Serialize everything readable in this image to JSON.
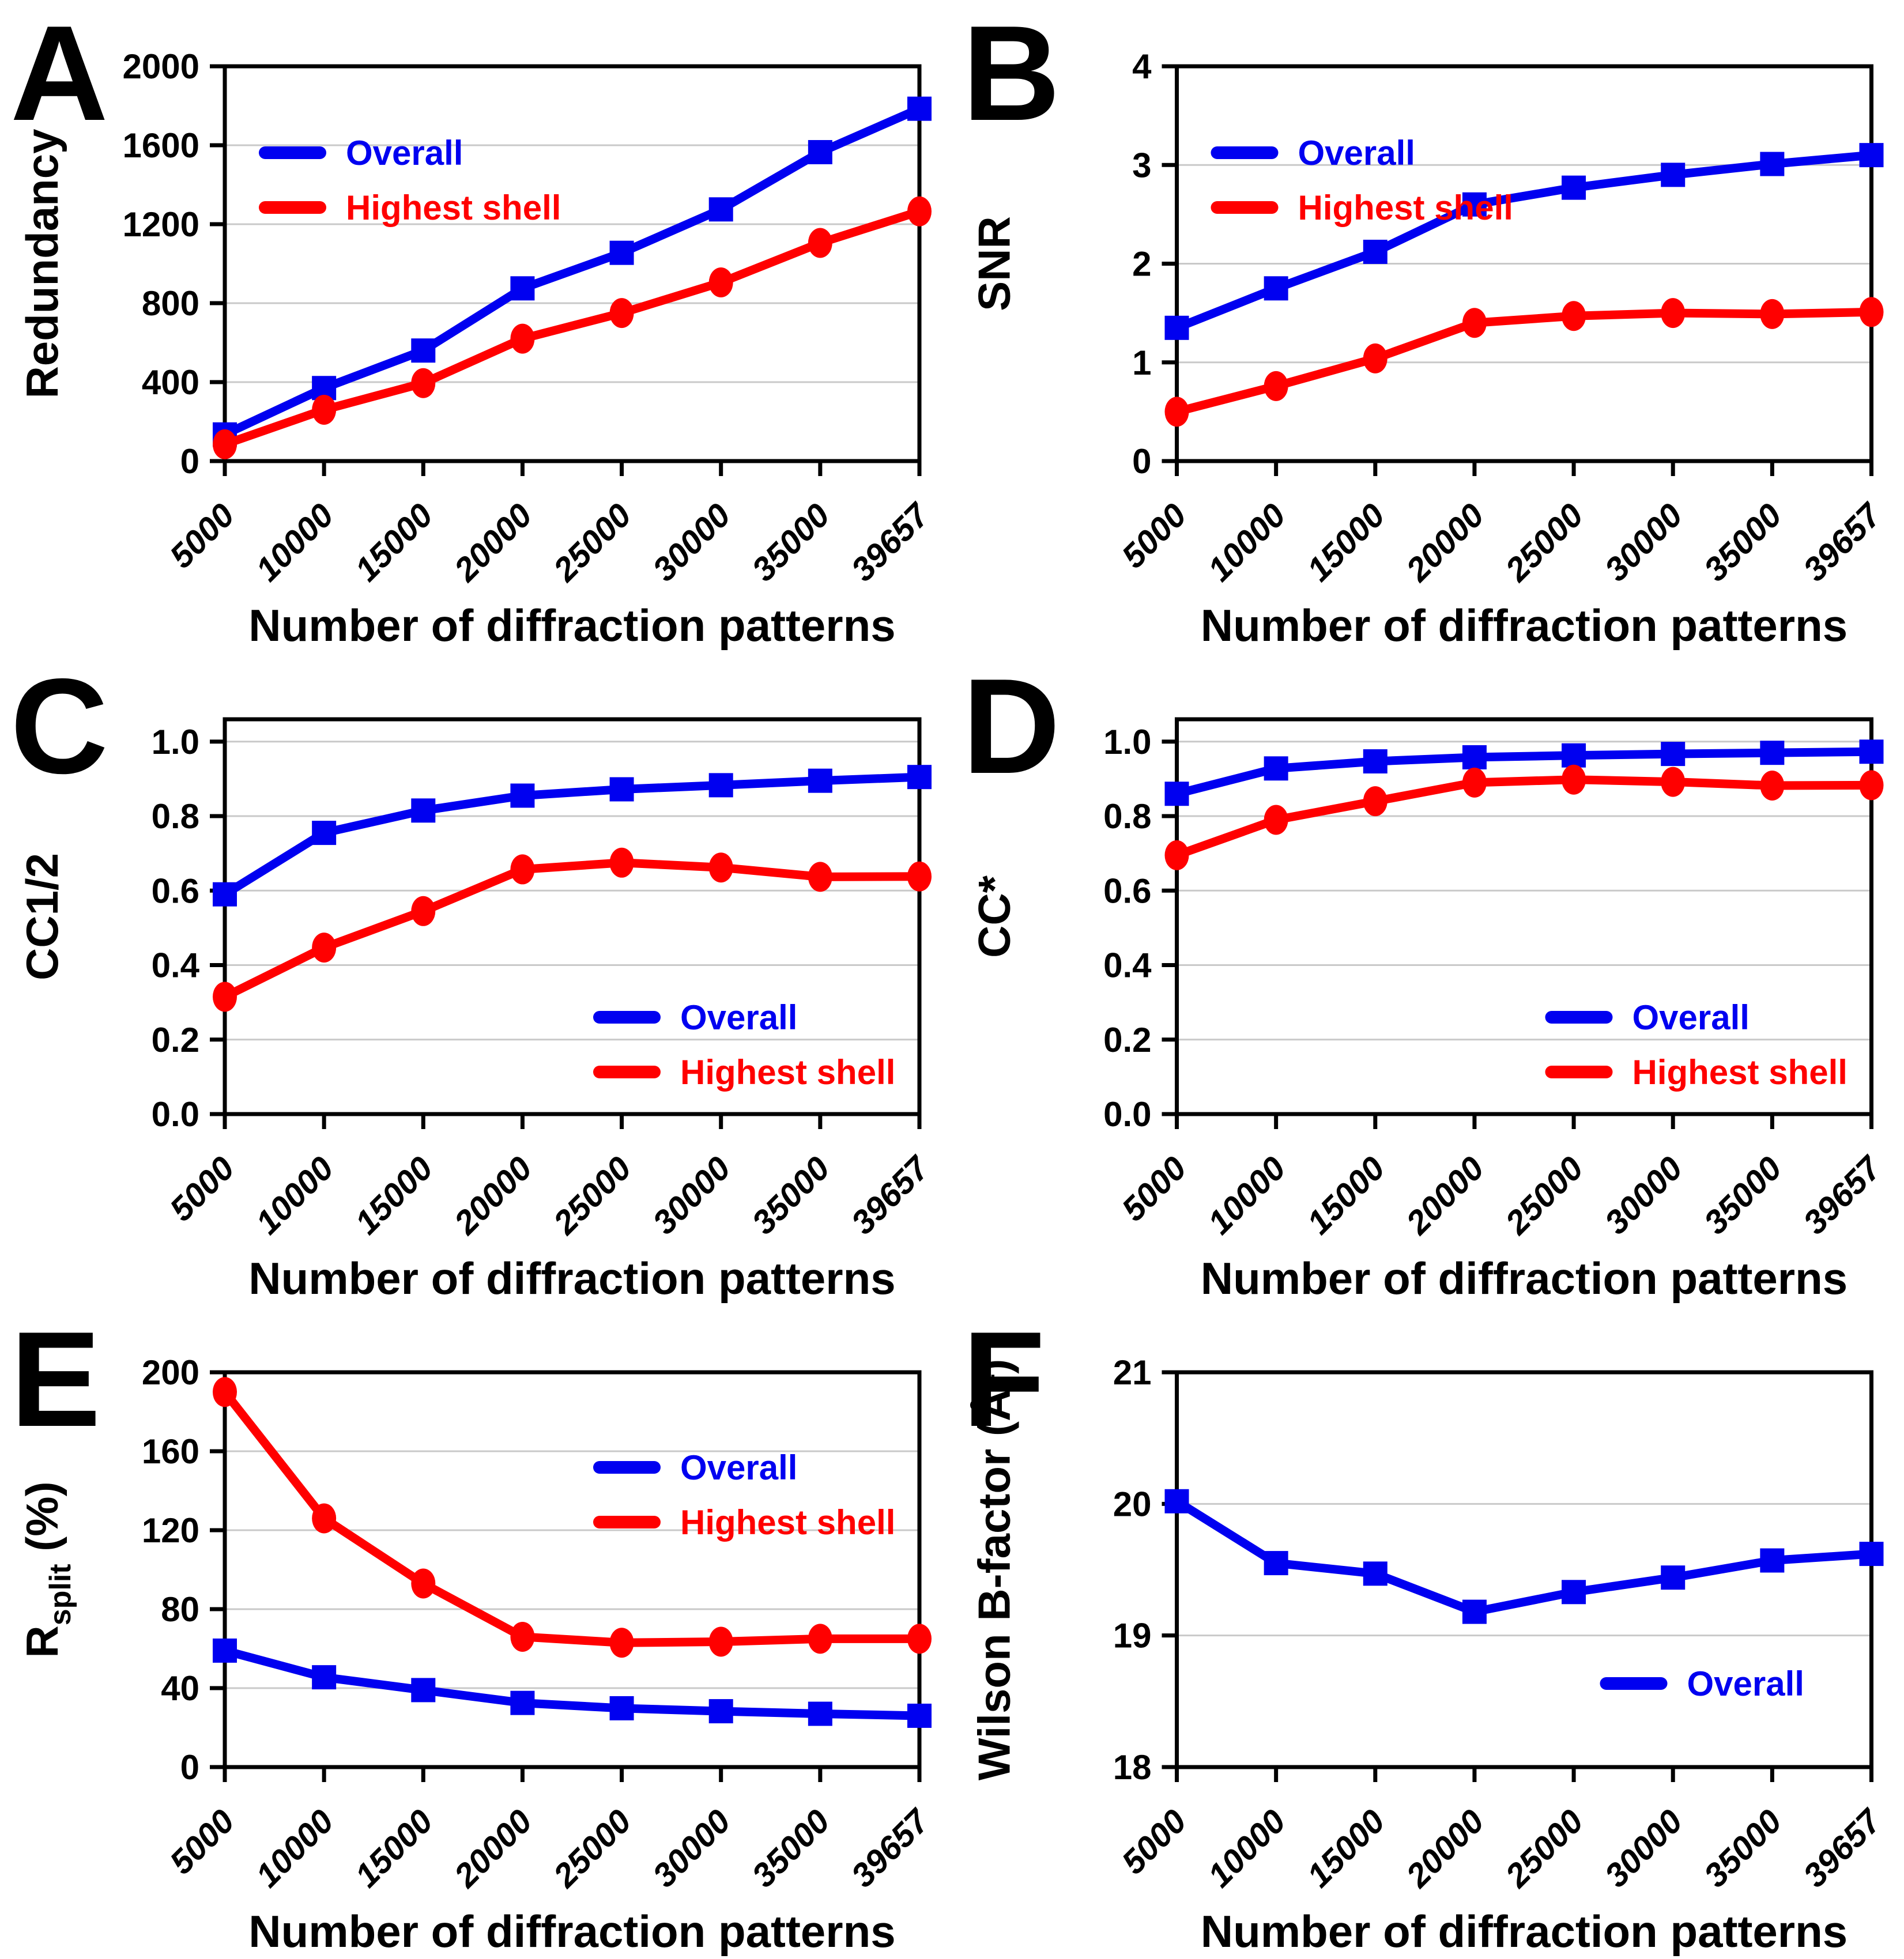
{
  "figure": {
    "background": "#FFFFFF",
    "xlabel": "Number of diffraction patterns",
    "categories": [
      "5000",
      "10000",
      "15000",
      "20000",
      "25000",
      "30000",
      "35000",
      "39657"
    ],
    "legend_labels": {
      "overall": "Overall",
      "highest_shell": "Highest shell"
    },
    "colors": {
      "overall": "#0000F0",
      "highest_shell": "#FF0000",
      "axis": "#000000",
      "grid": "#C9C9C9",
      "text": "#000000"
    }
  },
  "chart_data": [
    {
      "panel": "A",
      "type": "line",
      "ylabel_parts": [
        {
          "t": "Redundancy"
        }
      ],
      "ymin": 0,
      "ymax": 2000,
      "yticks": [
        "0",
        "400",
        "800",
        "1200",
        "1600",
        "2000"
      ],
      "x_categories": [
        "5000",
        "10000",
        "15000",
        "20000",
        "25000",
        "30000",
        "35000",
        "39657"
      ],
      "xlabel": "Number of diffraction patterns",
      "legend_position": "top-left",
      "series": [
        {
          "name": "Overall",
          "color": "#0000F0",
          "marker": "square",
          "values": [
            135,
            370,
            560,
            875,
            1055,
            1275,
            1565,
            1785
          ]
        },
        {
          "name": "Highest shell",
          "color": "#FF0000",
          "marker": "circle",
          "values": [
            85,
            260,
            395,
            620,
            750,
            905,
            1105,
            1265
          ]
        }
      ]
    },
    {
      "panel": "B",
      "type": "line",
      "ylabel_parts": [
        {
          "t": "SNR"
        }
      ],
      "ymin": 0,
      "ymax": 4,
      "yticks": [
        "0",
        "1",
        "2",
        "3",
        "4"
      ],
      "x_categories": [
        "5000",
        "10000",
        "15000",
        "20000",
        "25000",
        "30000",
        "35000",
        "39657"
      ],
      "xlabel": "Number of diffraction patterns",
      "legend_position": "top-left",
      "series": [
        {
          "name": "Overall",
          "color": "#0000F0",
          "marker": "square",
          "values": [
            1.35,
            1.75,
            2.12,
            2.6,
            2.77,
            2.9,
            3.01,
            3.1
          ]
        },
        {
          "name": "Highest shell",
          "color": "#FF0000",
          "marker": "circle",
          "values": [
            0.5,
            0.76,
            1.04,
            1.4,
            1.47,
            1.5,
            1.49,
            1.51
          ]
        }
      ]
    },
    {
      "panel": "C",
      "type": "line",
      "ylabel_parts": [
        {
          "t": "CC1/2"
        }
      ],
      "ymin": 0,
      "ymax": 1.06,
      "yticks": [
        "0.0",
        "0.2",
        "0.4",
        "0.6",
        "0.8",
        "1.0"
      ],
      "x_categories": [
        "5000",
        "10000",
        "15000",
        "20000",
        "25000",
        "30000",
        "35000",
        "39657"
      ],
      "xlabel": "Number of diffraction patterns",
      "legend_position": "bottom-right",
      "series": [
        {
          "name": "Overall",
          "color": "#0000F0",
          "marker": "square",
          "values": [
            0.59,
            0.755,
            0.815,
            0.855,
            0.872,
            0.883,
            0.895,
            0.905
          ]
        },
        {
          "name": "Highest shell",
          "color": "#FF0000",
          "marker": "circle",
          "values": [
            0.315,
            0.447,
            0.545,
            0.657,
            0.675,
            0.662,
            0.637,
            0.638
          ]
        }
      ]
    },
    {
      "panel": "D",
      "type": "line",
      "ylabel_parts": [
        {
          "t": "CC*"
        }
      ],
      "ymin": 0,
      "ymax": 1.06,
      "yticks": [
        "0.0",
        "0.2",
        "0.4",
        "0.6",
        "0.8",
        "1.0"
      ],
      "x_categories": [
        "5000",
        "10000",
        "15000",
        "20000",
        "25000",
        "30000",
        "35000",
        "39657"
      ],
      "xlabel": "Number of diffraction patterns",
      "legend_position": "bottom-right",
      "series": [
        {
          "name": "Overall",
          "color": "#0000F0",
          "marker": "square",
          "values": [
            0.86,
            0.928,
            0.947,
            0.958,
            0.963,
            0.967,
            0.97,
            0.973
          ]
        },
        {
          "name": "Highest shell",
          "color": "#FF0000",
          "marker": "circle",
          "values": [
            0.695,
            0.79,
            0.84,
            0.89,
            0.898,
            0.892,
            0.882,
            0.883
          ]
        }
      ]
    },
    {
      "panel": "E",
      "type": "line",
      "ylabel_parts": [
        {
          "t": "R"
        },
        {
          "t": "split",
          "sub": true
        },
        {
          "t": " (%)"
        }
      ],
      "ymin": 0,
      "ymax": 200,
      "yticks": [
        "0",
        "40",
        "80",
        "120",
        "160",
        "200"
      ],
      "x_categories": [
        "5000",
        "10000",
        "15000",
        "20000",
        "25000",
        "30000",
        "35000",
        "39657"
      ],
      "xlabel": "Number of diffraction patterns",
      "legend_position": "top-right",
      "series": [
        {
          "name": "Overall",
          "color": "#0000F0",
          "marker": "square",
          "values": [
            59,
            45.5,
            39,
            32.5,
            29.8,
            28.3,
            27,
            26
          ]
        },
        {
          "name": "Highest shell",
          "color": "#FF0000",
          "marker": "circle",
          "values": [
            190,
            126,
            93,
            66,
            63,
            63.5,
            65,
            65
          ]
        }
      ]
    },
    {
      "panel": "F",
      "type": "line",
      "ylabel_parts": [
        {
          "t": "Wilson B-factor (Å²)"
        }
      ],
      "ymin": 18,
      "ymax": 21,
      "yticks": [
        "18",
        "19",
        "20",
        "21"
      ],
      "x_categories": [
        "5000",
        "10000",
        "15000",
        "20000",
        "25000",
        "30000",
        "35000",
        "39657"
      ],
      "xlabel": "Number of diffraction patterns",
      "legend_position": "bottom-right-single",
      "series": [
        {
          "name": "Overall",
          "color": "#0000F0",
          "marker": "square",
          "values": [
            20.02,
            19.55,
            19.47,
            19.18,
            19.33,
            19.44,
            19.57,
            19.62
          ]
        }
      ]
    }
  ]
}
